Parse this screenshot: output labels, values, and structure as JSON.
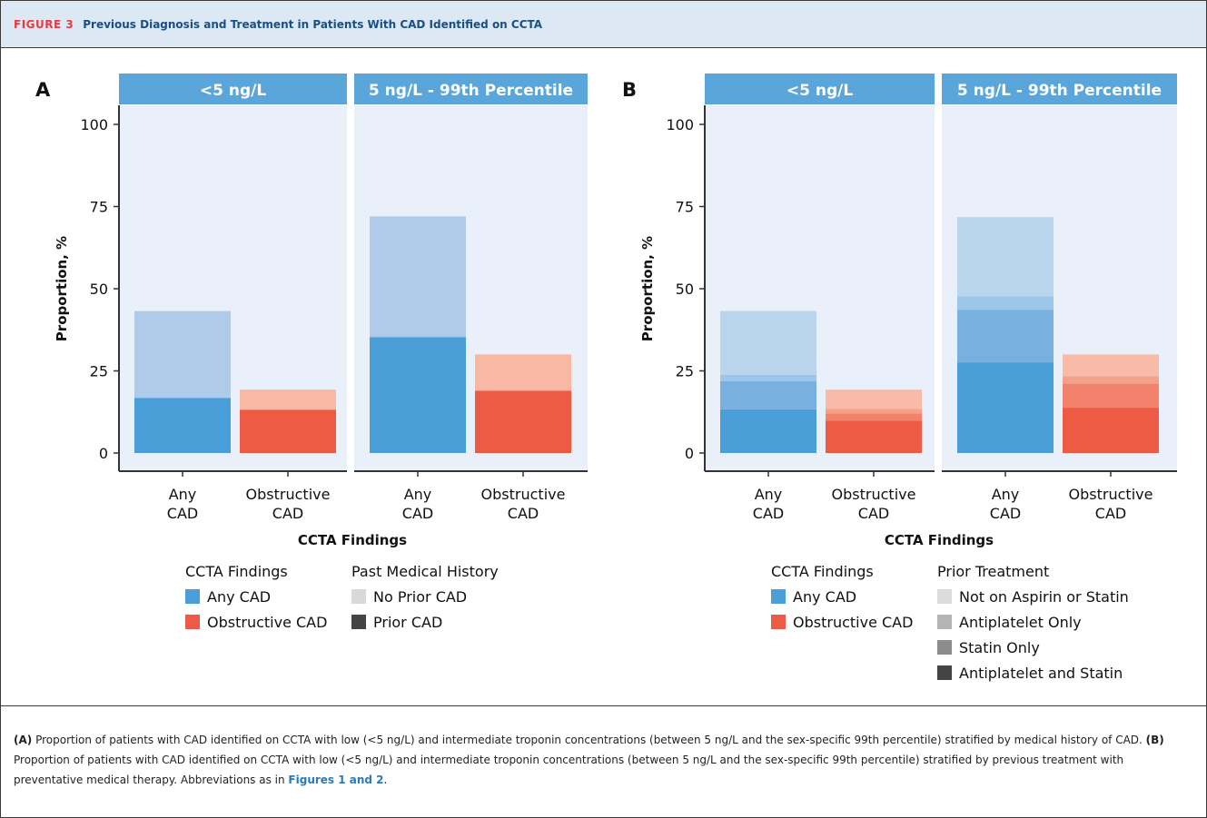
{
  "figure": {
    "label": "FIGURE 3",
    "title": "Previous Diagnosis and Treatment in Patients With CAD Identified on CCTA"
  },
  "caption": {
    "a_label": "(A)",
    "a_text": " Proportion of patients with CAD identified on CCTA with low (<5 ng/L) and intermediate troponin concentrations (between 5 ng/L and the sex-specific 99th percentile) stratified by medical history of CAD. ",
    "b_label": "(B)",
    "b_text": " Proportion of patients with CAD identified on CCTA with low (<5 ng/L) and intermediate troponin concentrations (between 5 ng/L and the sex-specific 99th percentile) stratified by previous treatment with preventative medical therapy. Abbreviations as in ",
    "ref": "Figures 1 and 2",
    "end": "."
  },
  "chart_data": [
    {
      "panel": "A",
      "type": "bar",
      "stacked": true,
      "facets": [
        "<5 ng/L",
        "5 ng/L - 99th Percentile"
      ],
      "categories": [
        "Any CAD",
        "Obstructive CAD"
      ],
      "xlabel": "CCTA Findings",
      "ylabel": "Proportion, %",
      "ylim": [
        0,
        100
      ],
      "yticks": [
        0,
        25,
        50,
        75,
        100
      ],
      "grid": false,
      "legend_placement": "bottom",
      "legends": [
        {
          "title": "CCTA Findings",
          "items": [
            {
              "label": "Any CAD",
              "color": "#4a9fd8"
            },
            {
              "label": "Obstructive CAD",
              "color": "#ee5b45"
            }
          ]
        },
        {
          "title": "Past Medical History",
          "items": [
            {
              "label": "No Prior CAD",
              "color": "#d9d9d9"
            },
            {
              "label": "Prior CAD",
              "color": "#444444"
            }
          ]
        }
      ],
      "series": [
        {
          "name": "Prior CAD",
          "values": [
            [
              16.8,
              13.2
            ],
            [
              35.3,
              19.0
            ]
          ]
        },
        {
          "name": "No Prior CAD",
          "values": [
            [
              26.4,
              6.1
            ],
            [
              36.7,
              11.0
            ]
          ]
        }
      ]
    },
    {
      "panel": "B",
      "type": "bar",
      "stacked": true,
      "facets": [
        "<5 ng/L",
        "5 ng/L - 99th Percentile"
      ],
      "categories": [
        "Any CAD",
        "Obstructive CAD"
      ],
      "xlabel": "CCTA Findings",
      "ylabel": "Proportion, %",
      "ylim": [
        0,
        100
      ],
      "yticks": [
        0,
        25,
        50,
        75,
        100
      ],
      "grid": false,
      "legend_placement": "bottom",
      "legends": [
        {
          "title": "CCTA Findings",
          "items": [
            {
              "label": "Any CAD",
              "color": "#4a9fd8"
            },
            {
              "label": "Obstructive CAD",
              "color": "#ee5b45"
            }
          ]
        },
        {
          "title": "Prior Treatment",
          "items": [
            {
              "label": "Not on Aspirin or Statin",
              "color": "#dcdcdc"
            },
            {
              "label": "Antiplatelet Only",
              "color": "#b4b4b4"
            },
            {
              "label": "Statin Only",
              "color": "#8c8c8c"
            },
            {
              "label": "Antiplatelet and Statin",
              "color": "#444444"
            }
          ]
        }
      ],
      "series": [
        {
          "name": "Antiplatelet and Statin",
          "values": [
            [
              13.3,
              9.8
            ],
            [
              27.6,
              13.8
            ]
          ]
        },
        {
          "name": "Statin Only",
          "values": [
            [
              8.6,
              2.2
            ],
            [
              16.0,
              7.3
            ]
          ]
        },
        {
          "name": "Antiplatelet Only",
          "values": [
            [
              1.9,
              1.4
            ],
            [
              4.1,
              2.3
            ]
          ]
        },
        {
          "name": "Not on Aspirin or Statin",
          "values": [
            [
              19.4,
              5.9
            ],
            [
              24.1,
              6.6
            ]
          ]
        }
      ]
    }
  ],
  "colors": {
    "strip": "#5aa6da",
    "panel_bg": "#eaf0f9",
    "blue_shades": [
      "#4a9fd8",
      "#78b1e0",
      "#9cc5ea",
      "#b9d5ee"
    ],
    "red_shades": [
      "#ee5b45",
      "#f2826b",
      "#f5a088",
      "#f8bba8"
    ],
    "blue_two": [
      "#4a9fd8",
      "#aeccea"
    ],
    "red_two": [
      "#ee5b45",
      "#f8b8a4"
    ]
  }
}
